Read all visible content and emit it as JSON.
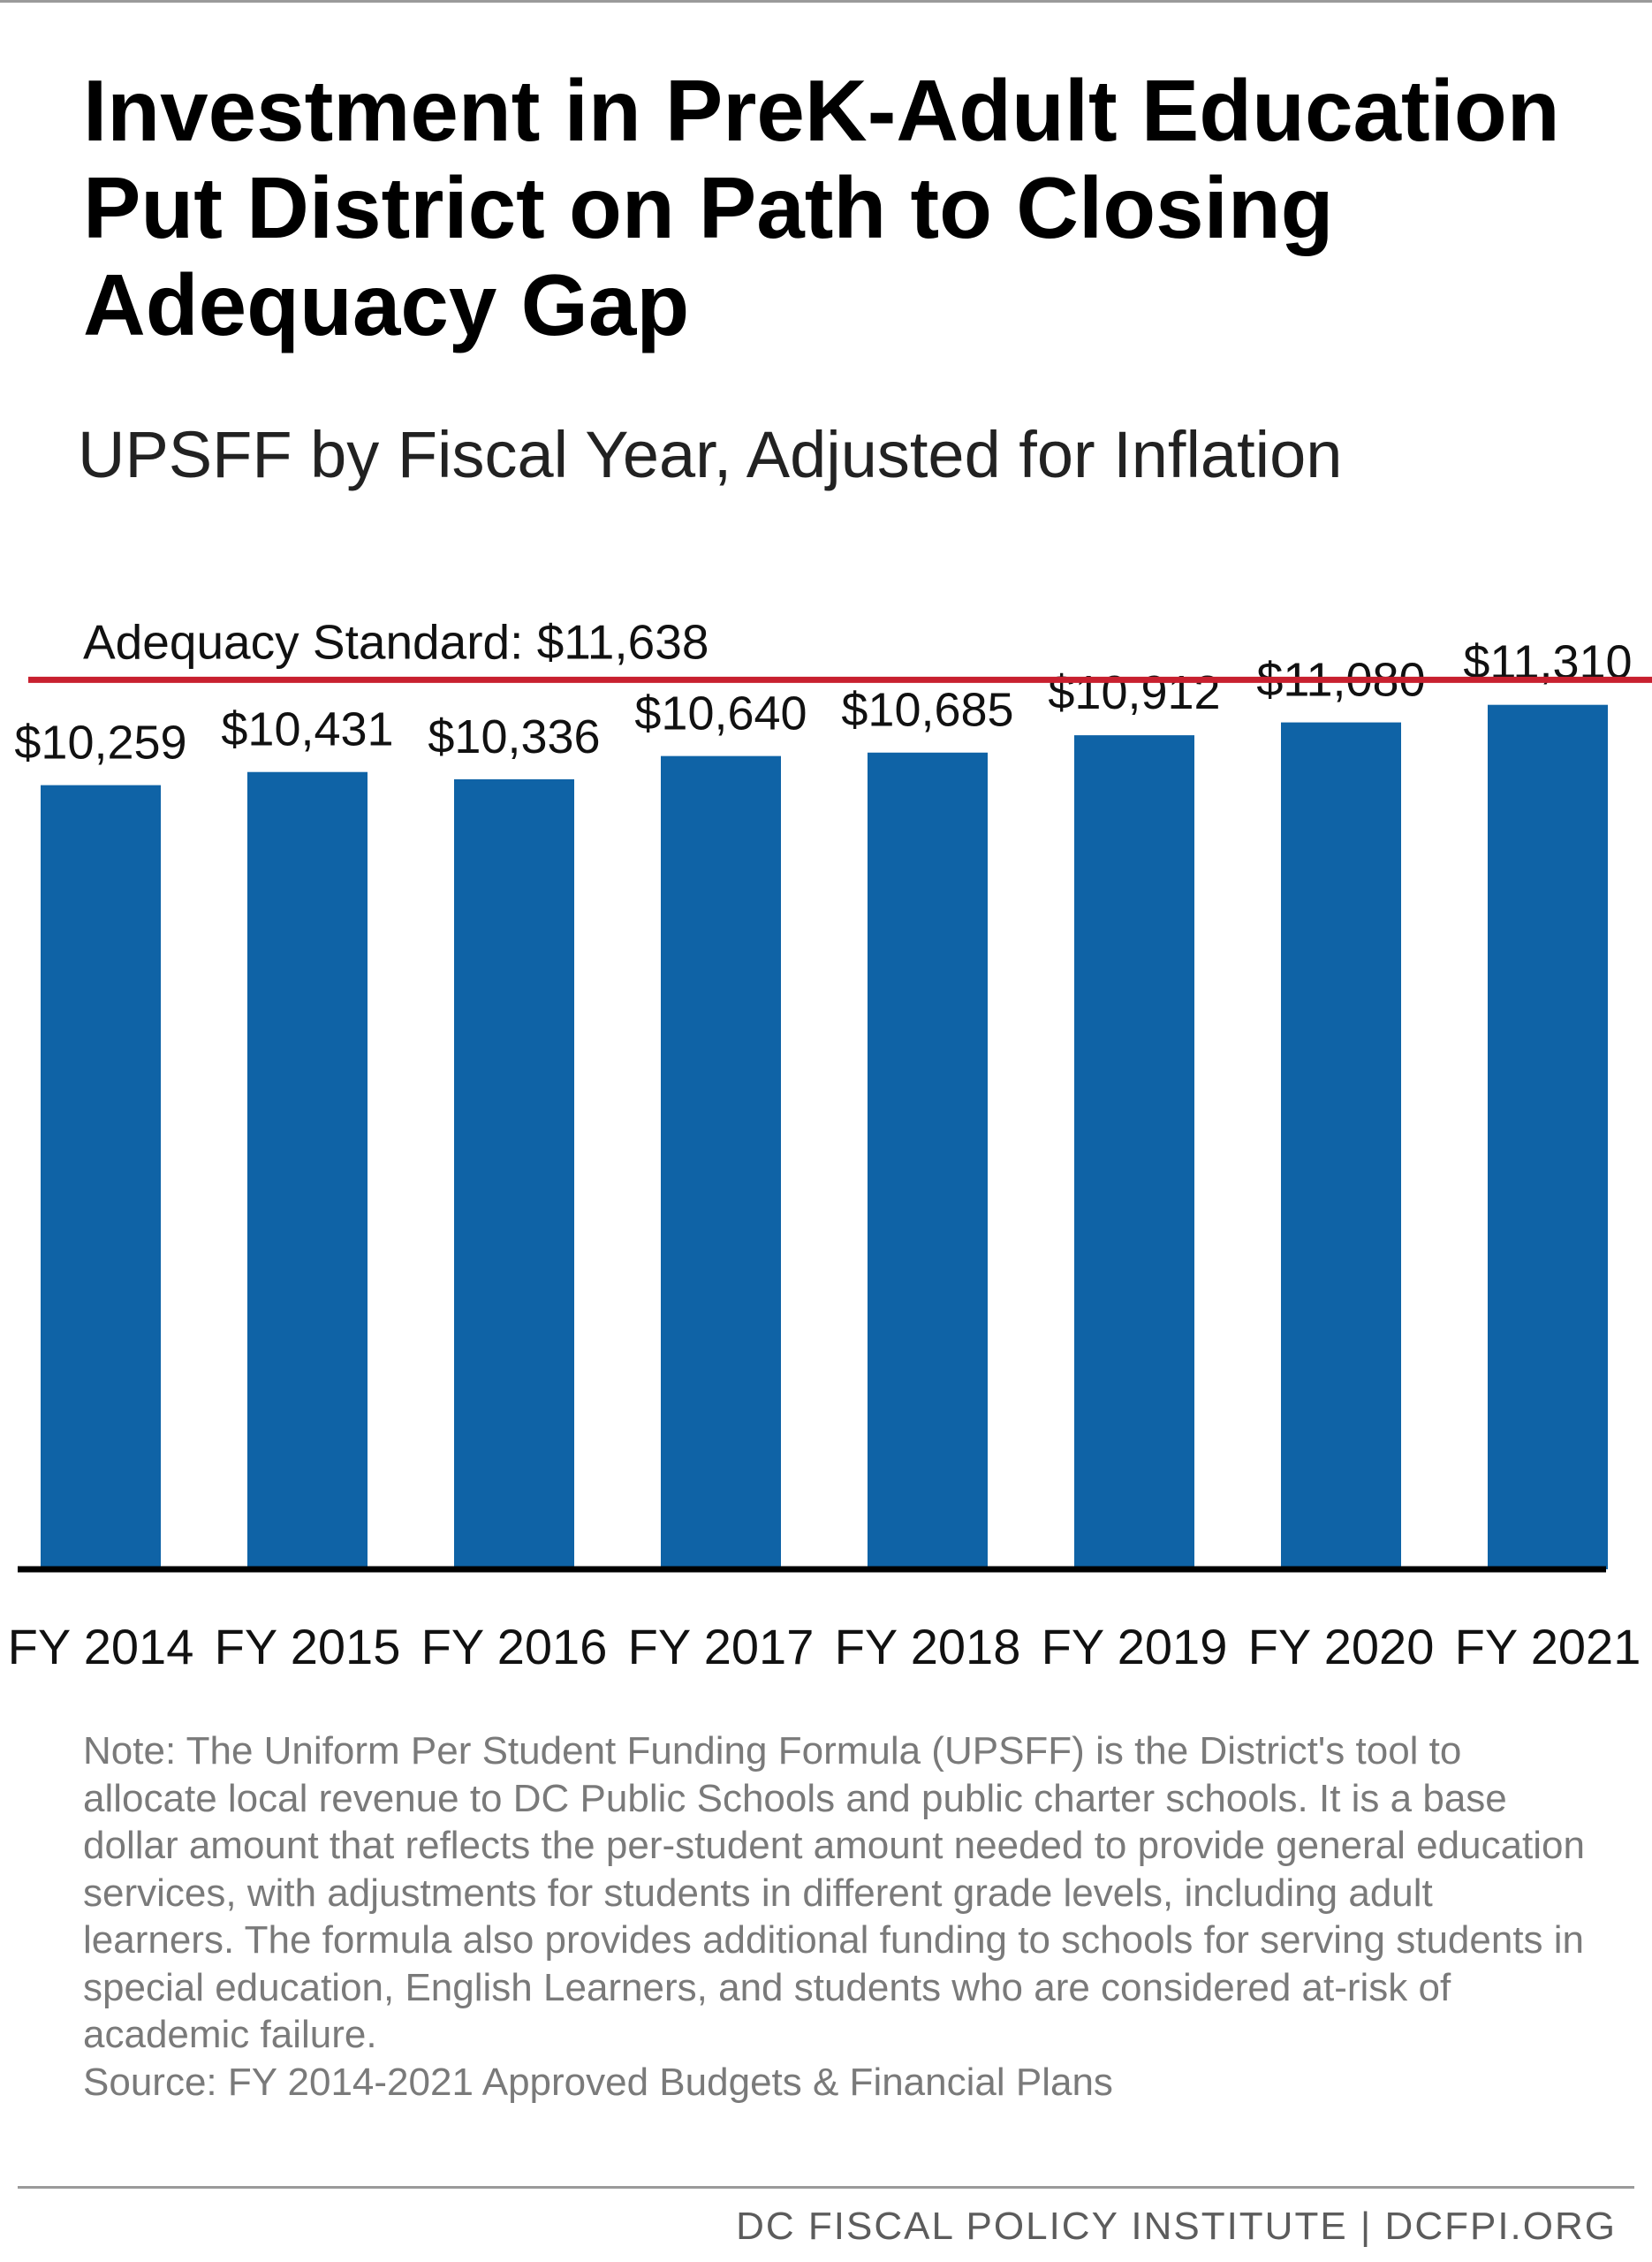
{
  "header": {
    "title": "Investment in PreK-Adult Education Put District on Path to Closing Adequacy Gap",
    "subtitle": "UPSFF by Fiscal Year, Adjusted for Inflation"
  },
  "chart_data": {
    "type": "bar",
    "categories": [
      "FY 2014",
      "FY 2015",
      "FY 2016",
      "FY 2017",
      "FY 2018",
      "FY 2019",
      "FY 2020",
      "FY 2021"
    ],
    "values": [
      10259,
      10431,
      10336,
      10640,
      10685,
      10912,
      11080,
      11310
    ],
    "value_labels": [
      "$10,259",
      "$10,431",
      "$10,336",
      "$10,640",
      "$10,685",
      "$10,912",
      "$11,080",
      "$11,310"
    ],
    "reference_line": {
      "label": "Adequacy Standard: $11,638",
      "value": 11638,
      "color": "#c8202f"
    },
    "bar_color": "#0f63a6",
    "ylim": [
      0,
      11638
    ],
    "grid": false,
    "legend": "none"
  },
  "notes": {
    "note": "Note: The Uniform Per Student Funding Formula (UPSFF) is the District's tool to allocate local revenue to DC Public Schools and public charter schools. It is a base dollar amount that reflects the per-student amount needed to provide general education services, with adjustments for students in different grade levels, including adult learners. The formula also provides additional funding to schools for serving students in special education, English Learners, and students who are considered at-risk of academic failure.",
    "source": "Source: FY 2014-2021 Approved Budgets & Financial Plans"
  },
  "footer": {
    "credit": "DC FISCAL POLICY INSTITUTE | DCFPI.ORG"
  }
}
